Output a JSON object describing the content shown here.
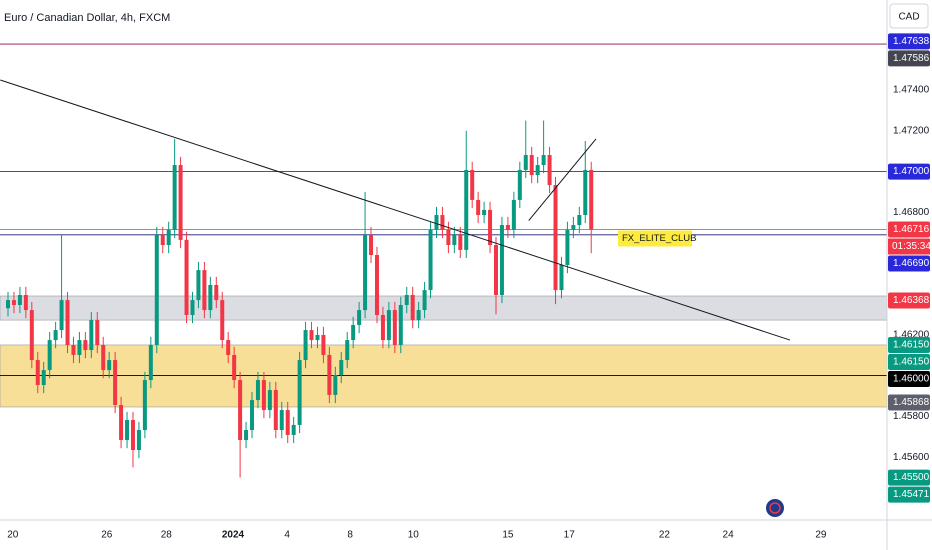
{
  "chart_data": {
    "type": "candlestick",
    "title": "Euro / Canadian Dollar, 4h, FXCM",
    "currency": "CAD",
    "countdown": "01:35:34",
    "up_color": "#089981",
    "down_color": "#f23645",
    "ylim": [
      1.45292,
      1.47841
    ],
    "yticks": [
      {
        "value": 1.474,
        "label": "1.47400"
      },
      {
        "value": 1.472,
        "label": "1.47200"
      },
      {
        "value": 1.468,
        "label": "1.46800"
      },
      {
        "value": 1.462,
        "label": "1.46200"
      },
      {
        "value": 1.458,
        "label": "1.45800"
      },
      {
        "value": 1.456,
        "label": "1.45600"
      }
    ],
    "xlim": [
      -1.345,
      147.7
    ],
    "xticks": [
      {
        "value": 0.8,
        "label": "20"
      },
      {
        "value": 16.6,
        "label": "26"
      },
      {
        "value": 26.6,
        "label": "28"
      },
      {
        "value": 37.8,
        "label": "2024"
      },
      {
        "value": 46.9,
        "label": "4"
      },
      {
        "value": 57.5,
        "label": "8"
      },
      {
        "value": 68.1,
        "label": "10"
      },
      {
        "value": 84,
        "label": "15"
      },
      {
        "value": 94.3,
        "label": "17"
      },
      {
        "value": 110.3,
        "label": "22"
      },
      {
        "value": 121,
        "label": "24"
      },
      {
        "value": 136.6,
        "label": "29"
      }
    ],
    "open": [
      1.4633,
      1.4637,
      1.46346,
      1.46395,
      1.46321,
      1.46076,
      1.45954,
      1.46027,
      1.46174,
      1.46223,
      1.4637,
      1.4615,
      1.46101,
      1.46174,
      1.46125,
      1.46272,
      1.4615,
      1.46027,
      1.46076,
      1.45856,
      1.45684,
      1.45782,
      1.45635,
      1.45733,
      1.45978,
      1.4615,
      1.46689,
      1.4664,
      1.46714,
      1.47032,
      1.46665,
      1.46297,
      1.4637,
      1.46517,
      1.46321,
      1.46444,
      1.4637,
      1.46174,
      1.46101,
      1.45978,
      1.45684,
      1.45733,
      1.4588,
      1.45978,
      1.45831,
      1.45929,
      1.45733,
      1.45831,
      1.45709,
      1.45758,
      1.46076,
      1.46223,
      1.46174,
      1.46199,
      1.46101,
      1.45905,
      1.46003,
      1.46076,
      1.46174,
      1.46248,
      1.46321,
      1.46689,
      1.46591,
      1.46297,
      1.46174,
      1.46321,
      1.4615,
      1.46346,
      1.46395,
      1.46272,
      1.46321,
      1.46419,
      1.46714,
      1.46787,
      1.46714,
      1.4664,
      1.46689,
      1.46616,
      1.47008,
      1.46861,
      1.46787,
      1.46812,
      1.4664,
      1.46395,
      1.46738,
      1.46714,
      1.46861,
      1.47008,
      1.47081,
      1.46983,
      1.47032,
      1.47081,
      1.46934,
      1.46419,
      1.46542,
      1.46714,
      1.46738,
      1.46787,
      1.47008
    ],
    "high": [
      1.4641,
      1.4641,
      1.46435,
      1.46435,
      1.46361,
      1.46116,
      1.46067,
      1.46214,
      1.46263,
      1.4669,
      1.4641,
      1.4619,
      1.46214,
      1.46214,
      1.46312,
      1.46312,
      1.4619,
      1.46116,
      1.46116,
      1.45896,
      1.45822,
      1.45822,
      1.45773,
      1.46018,
      1.4619,
      1.46729,
      1.46729,
      1.46754,
      1.4716,
      1.47072,
      1.46705,
      1.4641,
      1.46557,
      1.46557,
      1.46484,
      1.46484,
      1.4641,
      1.46214,
      1.46141,
      1.46018,
      1.45773,
      1.4592,
      1.46018,
      1.46018,
      1.45969,
      1.45969,
      1.45871,
      1.45871,
      1.45798,
      1.46116,
      1.46263,
      1.46263,
      1.46239,
      1.46239,
      1.46141,
      1.46043,
      1.46116,
      1.46214,
      1.46288,
      1.46361,
      1.469,
      1.46729,
      1.46631,
      1.46337,
      1.46361,
      1.46361,
      1.46386,
      1.46435,
      1.46435,
      1.46361,
      1.46459,
      1.46754,
      1.46827,
      1.46827,
      1.46754,
      1.46729,
      1.46729,
      1.472,
      1.47048,
      1.46901,
      1.46852,
      1.46852,
      1.4668,
      1.46778,
      1.46778,
      1.46901,
      1.47048,
      1.4725,
      1.47121,
      1.47072,
      1.4725,
      1.47121,
      1.46974,
      1.46582,
      1.46754,
      1.46778,
      1.46827,
      1.4715,
      1.47048
    ],
    "low": [
      1.4629,
      1.46306,
      1.46306,
      1.46281,
      1.46036,
      1.45914,
      1.45914,
      1.45987,
      1.46134,
      1.46183,
      1.4611,
      1.46061,
      1.46061,
      1.46085,
      1.46085,
      1.4611,
      1.45987,
      1.45987,
      1.45816,
      1.45644,
      1.45644,
      1.4555,
      1.45595,
      1.45693,
      1.45938,
      1.4611,
      1.466,
      1.466,
      1.46674,
      1.46625,
      1.46257,
      1.46257,
      1.4633,
      1.46281,
      1.46281,
      1.4633,
      1.46134,
      1.46061,
      1.45938,
      1.455,
      1.45644,
      1.45693,
      1.4584,
      1.45791,
      1.45791,
      1.45693,
      1.45693,
      1.45669,
      1.45669,
      1.45718,
      1.46036,
      1.46134,
      1.46134,
      1.46061,
      1.45865,
      1.45865,
      1.45963,
      1.46036,
      1.46134,
      1.46208,
      1.46281,
      1.46551,
      1.46257,
      1.46134,
      1.46134,
      1.4611,
      1.4611,
      1.46306,
      1.46232,
      1.46232,
      1.46281,
      1.46379,
      1.46674,
      1.46674,
      1.466,
      1.466,
      1.46576,
      1.46576,
      1.46821,
      1.46747,
      1.46747,
      1.466,
      1.463,
      1.46355,
      1.46674,
      1.46674,
      1.46821,
      1.46968,
      1.46943,
      1.46943,
      1.46992,
      1.46894,
      1.4635,
      1.46379,
      1.46502,
      1.46674,
      1.46698,
      1.46747,
      1.466
    ],
    "close": [
      1.4637,
      1.46346,
      1.46395,
      1.46321,
      1.46076,
      1.45954,
      1.46027,
      1.46174,
      1.46223,
      1.4637,
      1.4615,
      1.46101,
      1.46174,
      1.46125,
      1.46272,
      1.4615,
      1.46027,
      1.46076,
      1.45856,
      1.45684,
      1.45782,
      1.45635,
      1.45733,
      1.45978,
      1.4615,
      1.46689,
      1.4664,
      1.46714,
      1.47032,
      1.46665,
      1.46297,
      1.4637,
      1.46517,
      1.46321,
      1.46444,
      1.4637,
      1.46174,
      1.46101,
      1.45978,
      1.45684,
      1.45733,
      1.4588,
      1.45978,
      1.45831,
      1.45929,
      1.45733,
      1.45831,
      1.45709,
      1.45758,
      1.46076,
      1.46223,
      1.46174,
      1.46199,
      1.46101,
      1.45905,
      1.46003,
      1.46076,
      1.46174,
      1.46248,
      1.46321,
      1.46689,
      1.46591,
      1.46297,
      1.46174,
      1.46321,
      1.4615,
      1.46346,
      1.46395,
      1.46272,
      1.46321,
      1.46419,
      1.46714,
      1.46787,
      1.46714,
      1.4664,
      1.46689,
      1.46616,
      1.47008,
      1.46861,
      1.46787,
      1.46812,
      1.4664,
      1.46395,
      1.46738,
      1.46714,
      1.46861,
      1.47008,
      1.47081,
      1.46983,
      1.47032,
      1.47081,
      1.46934,
      1.46419,
      1.46542,
      1.46714,
      1.46738,
      1.46787,
      1.47008,
      1.46716
    ],
    "zones": [
      {
        "from": 1.4639,
        "to": 1.46272,
        "color": "#dcdde3"
      },
      {
        "from": 1.4615,
        "to": 1.45846,
        "color": "#f8df98"
      }
    ],
    "lines": [
      {
        "value": 1.47625,
        "color": "#880e4f"
      },
      {
        "value": 1.47,
        "color": "#2929d9"
      },
      {
        "value": 1.46716,
        "color": "#f23645"
      },
      {
        "value": 1.4669,
        "color": "#1a1a6e"
      },
      {
        "value": 1.46,
        "color": "#000000"
      }
    ],
    "trendlines": [
      {
        "start": [
          -1.3,
          1.47449
        ],
        "end": [
          131.4,
          1.46174
        ]
      },
      {
        "start": [
          87.5,
          1.4676
        ],
        "end": [
          98.8,
          1.4716
        ]
      }
    ],
    "annotation": {
      "text": "FX_ELITE_CLUB",
      "x": 102.5,
      "y": 1.46672
    },
    "price_labels": [
      {
        "value": 1.47638,
        "label": "1.47638",
        "color": "#2929d9"
      },
      {
        "value": 1.47586,
        "label": "1.47586",
        "color": "#434651"
      },
      {
        "value": 1.47,
        "label": "1.47000",
        "color": "#2929d9"
      },
      {
        "value": 1.46716,
        "label": "1.46716",
        "color": "#f23645"
      },
      {
        "value": 1.4669,
        "label": "1.46690",
        "color": "#2929d9"
      },
      {
        "value": 1.46368,
        "label": "1.46368",
        "color": "#f23645"
      },
      {
        "value": 1.4615,
        "label": "1.46150",
        "color": "#089981"
      },
      {
        "value": 1.4615,
        "label": "1.46150",
        "color": "#089981"
      },
      {
        "value": 1.46,
        "label": "1.46000",
        "color": "#000000"
      },
      {
        "value": 1.45868,
        "label": "1.45868",
        "color": "#5d606b"
      },
      {
        "value": 1.455,
        "label": "1.45500",
        "color": "#089981"
      },
      {
        "value": 1.45471,
        "label": "1.45471",
        "color": "#089981"
      }
    ]
  }
}
